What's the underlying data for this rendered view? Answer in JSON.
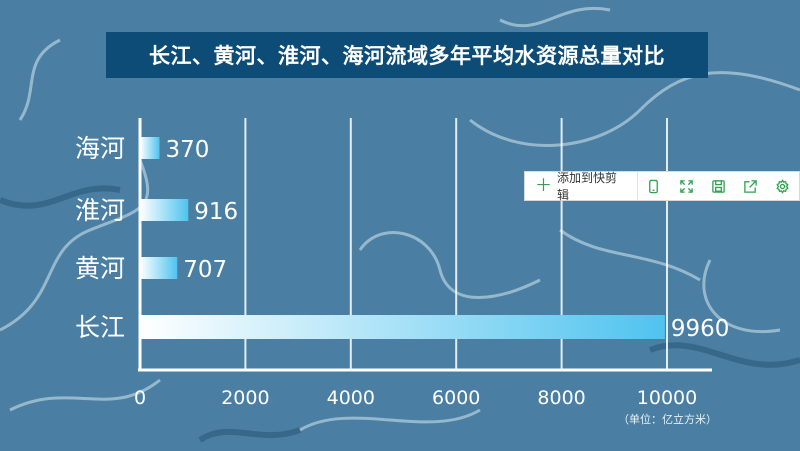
{
  "title": "长江、黄河、淮河、海河流域多年平均水资源总量对比",
  "unit_label": "（单位：亿立方米）",
  "toolbar": {
    "add_label": "添加到快剪辑",
    "icons": [
      "phone-icon",
      "expand-icon",
      "save-icon",
      "share-icon",
      "settings-icon"
    ]
  },
  "colors": {
    "background": "#4a7fa3",
    "title_bg": "#0d4c77",
    "bar_start": "#ffffff",
    "bar_end": "#4fc3ef",
    "accent": "#2ca44e"
  },
  "chart_data": {
    "type": "bar",
    "orientation": "horizontal",
    "title": "长江、黄河、淮河、海河流域多年平均水资源总量对比",
    "categories": [
      "海河",
      "淮河",
      "黄河",
      "长江"
    ],
    "values": [
      370,
      916,
      707,
      9960
    ],
    "xlim": [
      0,
      10000
    ],
    "xticks": [
      0,
      2000,
      4000,
      6000,
      8000,
      10000
    ],
    "xlabel": "（单位：亿立方米）",
    "ylabel": "",
    "grid": true
  }
}
